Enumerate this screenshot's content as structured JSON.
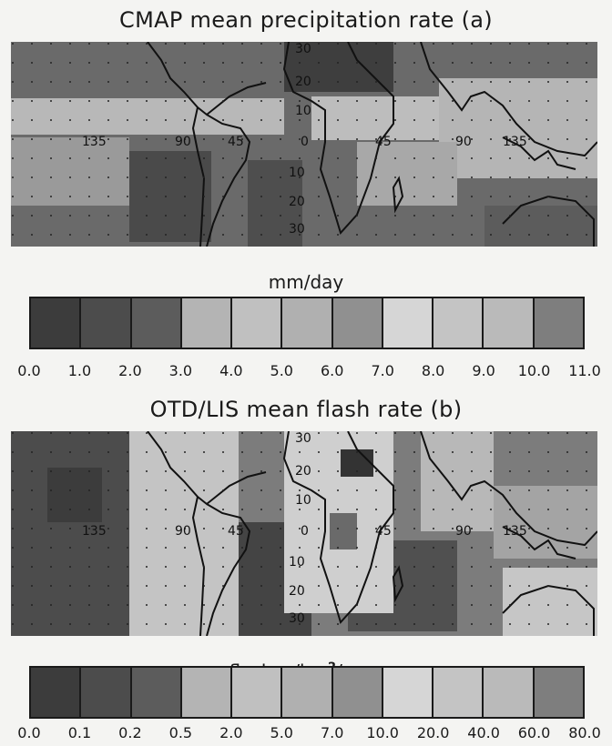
{
  "panel_a": {
    "title": "CMAP mean precipitation rate (a)",
    "unit": "mm/day",
    "lon_labels": [
      "135",
      "90",
      "45",
      "0",
      "45",
      "90",
      "135"
    ],
    "lat_labels": [
      "30",
      "20",
      "10",
      "10",
      "20",
      "30"
    ],
    "colorbar_ticks": [
      "0.0",
      "1.0",
      "2.0",
      "3.0",
      "4.0",
      "5.0",
      "6.0",
      "7.0",
      "8.0",
      "9.0",
      "10.0",
      "11.0"
    ],
    "colorbar_colors": [
      "#3c3c3c",
      "#4c4c4c",
      "#5c5c5c",
      "#b4b4b4",
      "#c0c0c0",
      "#b0b0b0",
      "#909090",
      "#d6d6d6",
      "#c4c4c4",
      "#bababa",
      "#7e7e7e"
    ]
  },
  "panel_b": {
    "title": "OTD/LIS mean flash rate (b)",
    "unit_prefix": "flashes/km",
    "unit_sup": "2",
    "unit_suffix": "/year",
    "lon_labels": [
      "135",
      "90",
      "45",
      "0",
      "45",
      "90",
      "135"
    ],
    "lat_labels": [
      "30",
      "20",
      "10",
      "10",
      "20",
      "30"
    ],
    "colorbar_ticks": [
      "0.0",
      "0.1",
      "0.2",
      "0.5",
      "2.0",
      "5.0",
      "7.0",
      "10.0",
      "20.0",
      "40.0",
      "60.0",
      "80.0"
    ],
    "colorbar_colors": [
      "#3c3c3c",
      "#4c4c4c",
      "#5c5c5c",
      "#b4b4b4",
      "#c0c0c0",
      "#b0b0b0",
      "#909090",
      "#d6d6d6",
      "#c4c4c4",
      "#bababa",
      "#7e7e7e"
    ]
  }
}
